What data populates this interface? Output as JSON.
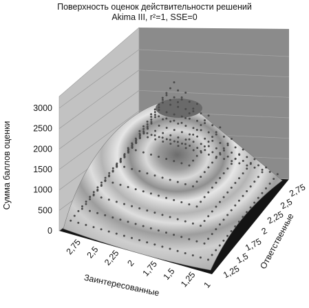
{
  "chart_data": {
    "type": "surface",
    "title": "Поверхность оценок действительности решений",
    "subtitle": "Akima III, r²=1, SSE=0",
    "xlabel": "Заинтересованные",
    "ylabel": "Ответственные",
    "zlabel": "Сумма баллов оценки",
    "x_ticks": [
      "2,75",
      "2,5",
      "2,25",
      "2",
      "1,75",
      "1,5",
      "1,25",
      "1"
    ],
    "y_ticks": [
      "1,25",
      "1,5",
      "1,75",
      "2",
      "2,25",
      "2,5",
      "2,75"
    ],
    "z_ticks": [
      "0",
      "500",
      "1000",
      "1500",
      "2000",
      "2500",
      "3000"
    ],
    "xlim": [
      1,
      3
    ],
    "ylim": [
      1,
      3
    ],
    "zlim": [
      0,
      3000
    ],
    "peak": {
      "x": 2,
      "y": 2,
      "z": 3000
    },
    "grid": true,
    "legend": "none"
  },
  "colors": {
    "back_wall": "#8a8a8a",
    "side_wall": "#bdbdbd",
    "floor": "#151515",
    "grid_line": "#9a9a9a",
    "dot": "#4a4a4a"
  }
}
